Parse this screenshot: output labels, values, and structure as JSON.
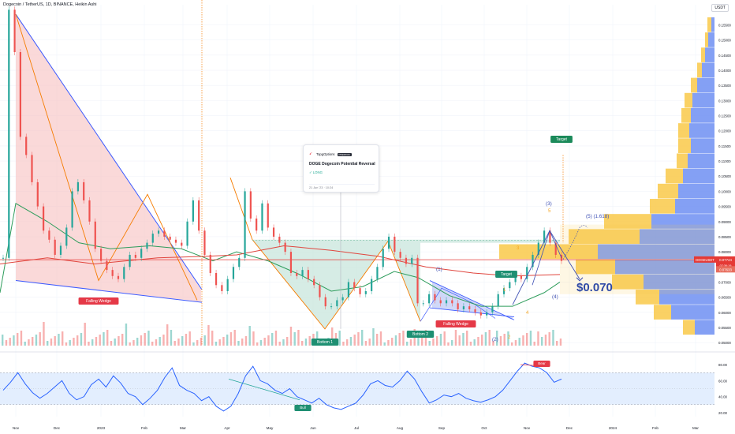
{
  "header": {
    "symbol": "Dogecoin / TetherUS, 1D, BINANCE, Heikin Ashi",
    "currency": "USDT"
  },
  "idea_card": {
    "brand": "TopgOptions",
    "badge": "PREMIUM",
    "title": "DOGE Dogecoin Potential Reversal",
    "direction": "✓ LONG",
    "timestamp": "21 Jun '23 · 10:24"
  },
  "colors": {
    "up": "#26a69a",
    "down": "#ef5350",
    "wedge_fill": "#f8c5c5",
    "wedge_line": "#3d5afe",
    "zigzag": "#f57c00",
    "bottom_fill": "#c8e6dc",
    "ema_green": "#2e9d5c",
    "ema_red": "#e0463e",
    "ref_line": "#e53935",
    "rsi": "#2962ff",
    "rsi_band": "#e3eefe",
    "vp_blue": "#6f8ff2",
    "vp_orange": "#f9c949",
    "target_green": "#1b8a5a",
    "label_red": "#e53947",
    "label_teal": "#1e8f72",
    "wave_blue": "#3f51b5",
    "wave_orange": "#f5a623"
  },
  "chart_data": {
    "type": "candlestick",
    "title": "Dogecoin / TetherUS, 1D, BINANCE, Heikin Ashi",
    "x_ticks": [
      "Nov",
      "Dec",
      "2023",
      "Feb",
      "Mar",
      "Apr",
      "May",
      "Jun",
      "Jul",
      "Aug",
      "Sep",
      "Oct",
      "Nov",
      "Dec",
      "2024",
      "Feb",
      "Mar"
    ],
    "y_ticks": [
      "0.15500",
      "0.15000",
      "0.14500",
      "0.14000",
      "0.13500",
      "0.13000",
      "0.12500",
      "0.12000",
      "0.11500",
      "0.11000",
      "0.10500",
      "0.10000",
      "0.09500",
      "0.09000",
      "0.08500",
      "0.08000",
      "0.07500",
      "0.07000",
      "0.06500",
      "0.06000",
      "0.05500",
      "0.05000"
    ],
    "ylim": [
      0.049,
      0.158
    ],
    "price_labels": {
      "symbol": "DOGEUSDT",
      "last": "0.07744",
      "countdown": "07:36:19",
      "ema": "0.07633"
    },
    "series_close": [
      [
        0.078,
        0.16,
        0.146,
        0.118,
        0.112,
        0.103,
        0.095,
        0.087,
        0.084,
        0.079,
        0.082,
        0.088,
        0.1,
        0.103,
        0.097,
        0.09,
        0.081,
        0.077,
        0.074
      ],
      [
        0.072,
        0.071,
        0.075,
        0.079,
        0.078,
        0.081,
        0.083,
        0.086,
        0.087,
        0.085,
        0.084,
        0.083,
        0.082,
        0.09,
        0.097,
        0.087,
        0.079,
        0.073,
        0.069
      ],
      [
        0.067,
        0.071,
        0.075,
        0.078,
        0.1,
        0.091,
        0.087,
        0.096,
        0.088,
        0.085,
        0.083,
        0.08,
        0.073,
        0.072,
        0.074,
        0.071,
        0.069,
        0.065,
        0.062
      ],
      [
        0.062,
        0.064,
        0.065,
        0.07,
        0.068,
        0.066,
        0.067,
        0.071,
        0.075,
        0.081,
        0.085,
        0.08,
        0.078,
        0.076,
        0.078,
        0.063,
        0.063,
        0.066,
        0.064
      ],
      [
        0.063,
        0.064,
        0.063,
        0.061,
        0.062,
        0.061,
        0.06,
        0.059,
        0.06,
        0.062,
        0.066,
        0.068,
        0.07,
        0.072,
        0.071,
        0.075,
        0.079,
        0.083,
        0.087,
        0.083,
        0.079,
        0.077
      ]
    ],
    "annotations": [
      {
        "text": "Falling Wedge"
      },
      {
        "text": "Bottom 1"
      },
      {
        "text": "Bottom 2"
      },
      {
        "text": "Falling Wedge"
      },
      {
        "text": "Target"
      },
      {
        "text": "Target"
      },
      {
        "text": "$0.070"
      },
      {
        "text": "(1)"
      },
      {
        "text": "(2)"
      },
      {
        "text": "(3)"
      },
      {
        "text": "(4)"
      },
      {
        "text": "(5) (1.618)"
      },
      {
        "text": "1"
      },
      {
        "text": "2"
      },
      {
        "text": "3"
      },
      {
        "text": "4"
      },
      {
        "text": "5"
      },
      {
        "text": "Bull"
      },
      {
        "text": "Bear"
      }
    ],
    "rsi": {
      "y_ticks": [
        "80.00",
        "60.00",
        "40.00",
        "20.00"
      ],
      "ylim": [
        15,
        90
      ],
      "band": [
        30,
        70
      ],
      "values": [
        48,
        58,
        70,
        56,
        45,
        38,
        44,
        52,
        60,
        44,
        36,
        40,
        55,
        62,
        52,
        66,
        57,
        44,
        40,
        30,
        38,
        48,
        64,
        76,
        54,
        48,
        44,
        35,
        40,
        28,
        22,
        28,
        44,
        66,
        78,
        60,
        56,
        48,
        44,
        50,
        40,
        36,
        32,
        38,
        30,
        26,
        24,
        28,
        32,
        42,
        56,
        60,
        54,
        52,
        60,
        72,
        62,
        46,
        32,
        36,
        42,
        40,
        44,
        38,
        35,
        33,
        36,
        40,
        48,
        60,
        72,
        82,
        78,
        76,
        70,
        58,
        62
      ]
    }
  }
}
